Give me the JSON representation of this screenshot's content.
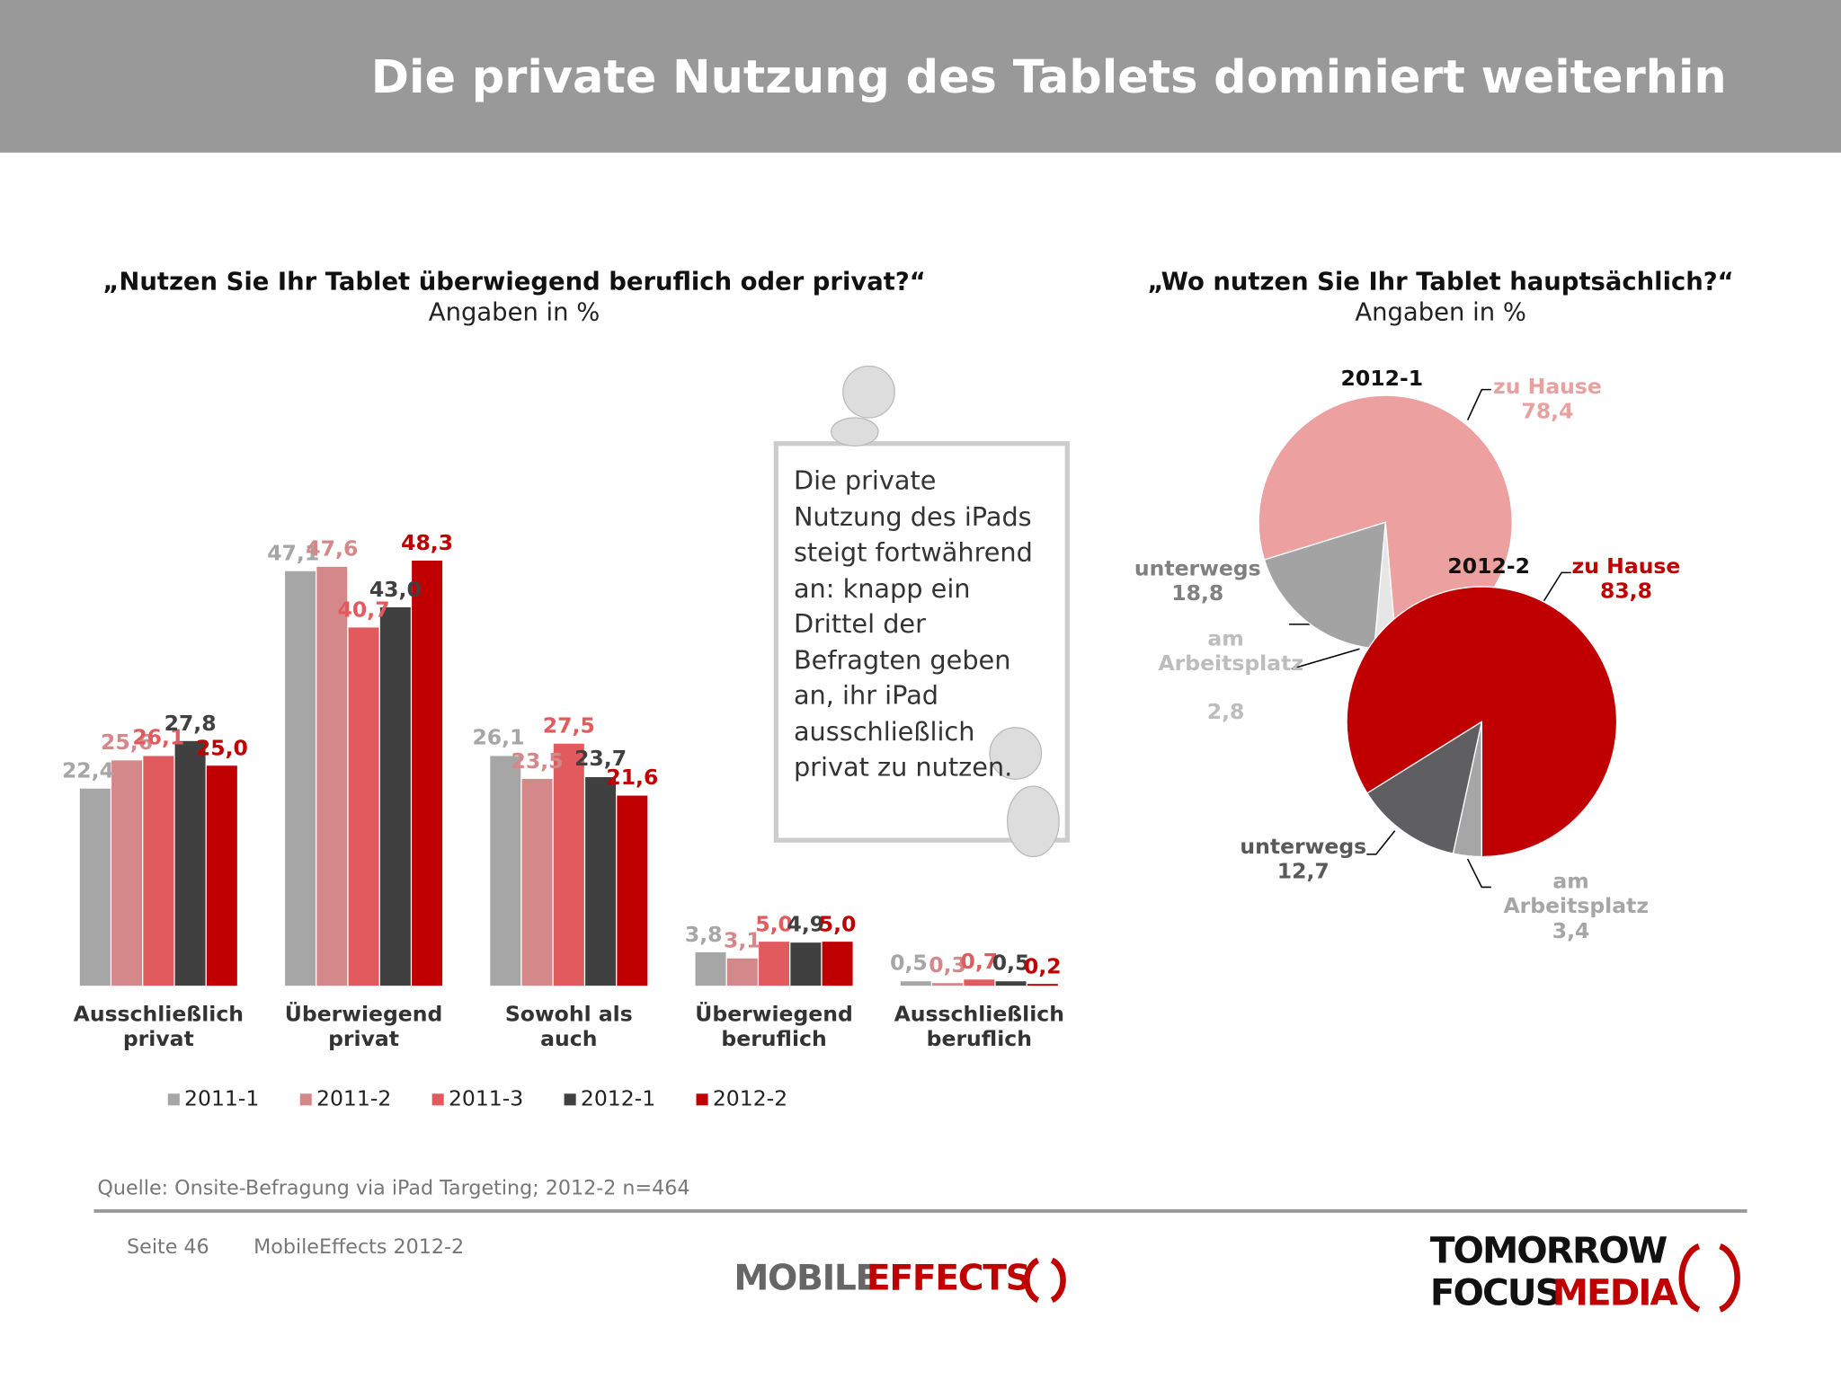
{
  "header": {
    "title": "Die private Nutzung des Tablets dominiert weiterhin"
  },
  "chart_data": [
    {
      "type": "bar",
      "title": "„Nutzen Sie Ihr Tablet überwiegend beruflich oder privat?“",
      "subtitle": "Angaben in %",
      "categories": [
        "Ausschließlich privat",
        "Überwiegend privat",
        "Sowohl als auch",
        "Überwiegend beruflich",
        "Ausschließlich beruflich"
      ],
      "ylim": [
        0,
        50
      ],
      "series": [
        {
          "name": "2011-1",
          "color": "#a6a6a6",
          "values": [
            22.4,
            47.1,
            26.1,
            3.8,
            0.5
          ],
          "value_labels": [
            "22,4",
            "47,1",
            "26,1",
            "3,8",
            "0,5"
          ]
        },
        {
          "name": "2011-2",
          "color": "#d4888a",
          "values": [
            25.6,
            47.6,
            23.5,
            3.1,
            0.3
          ],
          "value_labels": [
            "25,6",
            "47,6",
            "23,5",
            "3,1",
            "0,3"
          ]
        },
        {
          "name": "2011-3",
          "color": "#e05a5e",
          "values": [
            26.1,
            40.7,
            27.5,
            5.0,
            0.7
          ],
          "value_labels": [
            "26,1",
            "40,7",
            "27,5",
            "5,0",
            "0,7"
          ]
        },
        {
          "name": "2012-1",
          "color": "#404040",
          "values": [
            27.8,
            43.0,
            23.7,
            4.9,
            0.5
          ],
          "value_labels": [
            "27,8",
            "43,0",
            "23,7",
            "4,9",
            "0,5"
          ]
        },
        {
          "name": "2012-2",
          "color": "#c00000",
          "values": [
            25.0,
            48.3,
            21.6,
            5.0,
            0.2
          ],
          "value_labels": [
            "25,0",
            "48,3",
            "21,6",
            "5,0",
            "0,2"
          ]
        }
      ]
    },
    {
      "type": "pie",
      "title": "„Wo nutzen Sie Ihr Tablet hauptsächlich?“",
      "subtitle": "Angaben in %",
      "pies": [
        {
          "name": "2012-1",
          "categories": [
            "zu Hause",
            "unterwegs",
            "am Arbeitsplatz"
          ],
          "values": [
            78.4,
            18.8,
            2.8
          ],
          "value_labels": [
            "78,4",
            "18,8",
            "2,8"
          ],
          "colors": [
            "#eda0a0",
            "#a3a3a3",
            "#e6e6e6"
          ],
          "label_colors": [
            "#e8a0a0",
            "#808080",
            "#bdbdbd"
          ]
        },
        {
          "name": "2012-2",
          "categories": [
            "zu Hause",
            "unterwegs",
            "am Arbeitsplatz"
          ],
          "values": [
            83.8,
            12.7,
            3.4
          ],
          "value_labels": [
            "83,8",
            "12,7",
            "3,4"
          ],
          "colors": [
            "#c00000",
            "#5f5f61",
            "#a6a6a6"
          ],
          "label_colors": [
            "#c00000",
            "#595959",
            "#a6a6a6"
          ]
        }
      ]
    }
  ],
  "note": "Die private Nutzung des iPads steigt fortwährend an: knapp ein Drittel der Befragten geben an, ihr iPad ausschließlich privat zu nutzen.",
  "footer": {
    "source": "Quelle: Onsite-Befragung via iPad Targeting; 2012-2 n=464",
    "page": "Seite 46",
    "study": "MobileEffects 2012-2",
    "logo_left": [
      "MOBILE",
      "EFFECTS"
    ],
    "logo_right": [
      "TOMORROW",
      "FOCUS",
      "MEDIA"
    ]
  }
}
